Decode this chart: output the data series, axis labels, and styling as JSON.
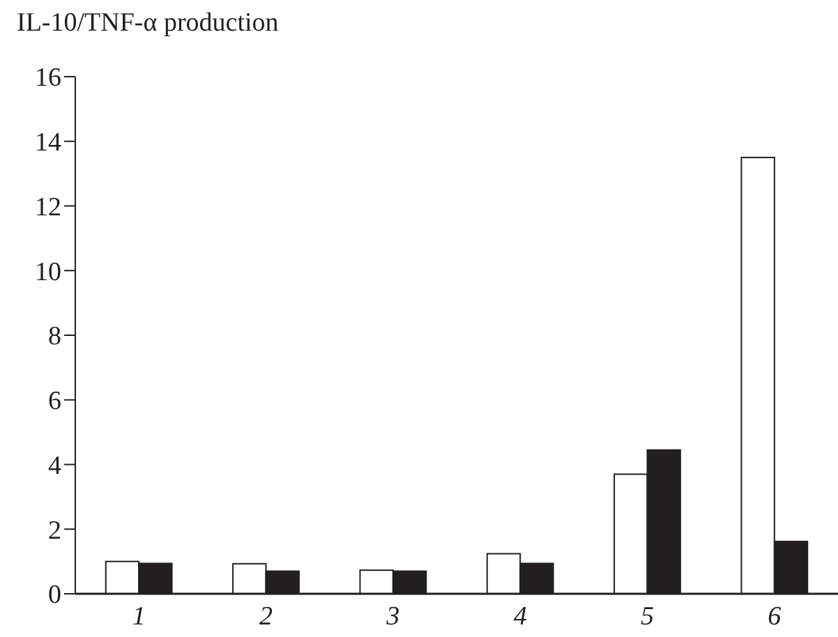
{
  "chart_data": {
    "type": "bar",
    "title": "IL-10/TNF-α production",
    "categories": [
      "1",
      "2",
      "3",
      "4",
      "5",
      "6"
    ],
    "series": [
      {
        "color": "#ffffff",
        "values": [
          1.0,
          0.93,
          0.73,
          1.24,
          3.7,
          13.5
        ]
      },
      {
        "color": "#231f20",
        "values": [
          0.94,
          0.7,
          0.7,
          0.94,
          4.45,
          1.62
        ]
      }
    ],
    "ylim": [
      0,
      16
    ],
    "yticks": [
      0,
      2,
      4,
      6,
      8,
      10,
      12,
      14,
      16
    ],
    "grid": false
  }
}
